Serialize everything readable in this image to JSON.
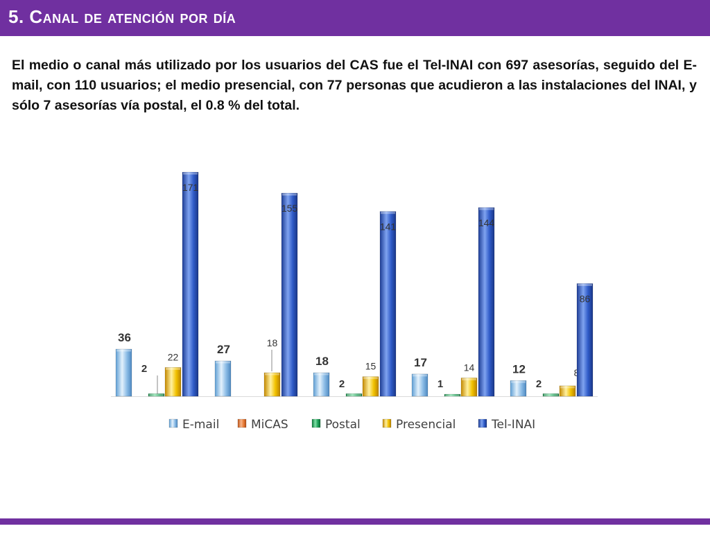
{
  "slide": {
    "title": "5. Canal de atención por día",
    "body": "El medio o canal más utilizado por los usuarios del CAS fue el Tel-INAI con 697 asesorías, seguido del E-mail, con 110 usuarios; el medio presencial, con 77 personas que acudieron a las instalaciones del INAI, y sólo 7 asesorías vía postal, el 0.8 % del total."
  },
  "colors": {
    "accent": "#7030a0",
    "E-mail": "#9dc3e6",
    "MiCAS": "#ed7d31",
    "Postal": "#00b050",
    "Presencial": "#ffc000",
    "Tel-INAI": "#2f55b4"
  },
  "chart_data": {
    "type": "bar",
    "categories": [
      "",
      "",
      "",
      "",
      ""
    ],
    "series": [
      {
        "name": "E-mail",
        "values": [
          36,
          27,
          18,
          17,
          12
        ]
      },
      {
        "name": "MiCAS",
        "values": [
          null,
          null,
          null,
          null,
          null
        ]
      },
      {
        "name": "Postal",
        "values": [
          2,
          null,
          2,
          1,
          2
        ]
      },
      {
        "name": "Presencial",
        "values": [
          22,
          18,
          15,
          14,
          8
        ]
      },
      {
        "name": "Tel-INAI",
        "values": [
          171,
          155,
          141,
          144,
          86
        ]
      }
    ],
    "legend_position": "bottom",
    "grid": false,
    "ylim": [
      0,
      175
    ]
  }
}
